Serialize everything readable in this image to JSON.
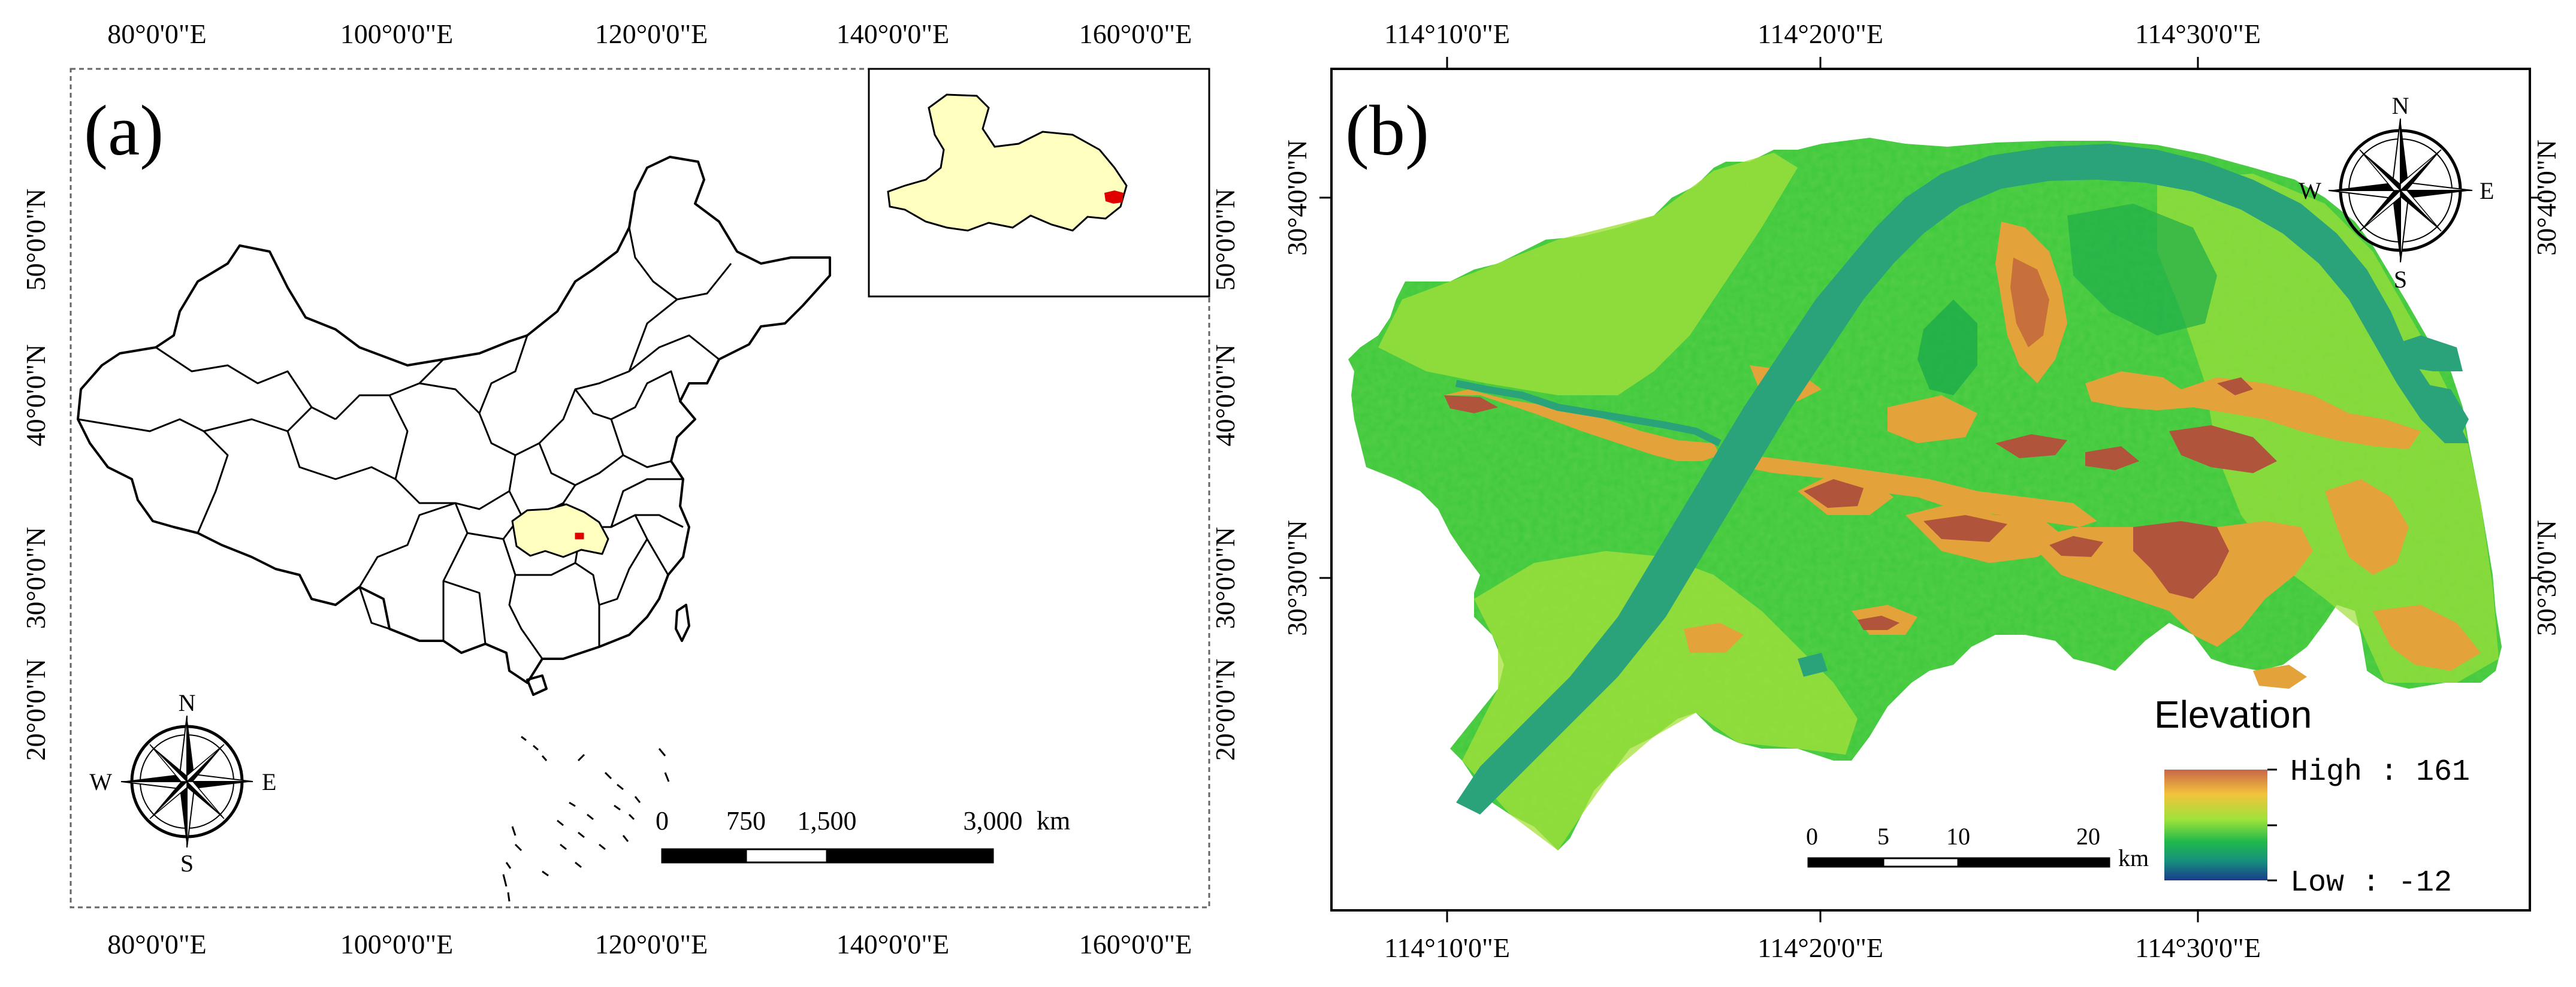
{
  "panel_a": {
    "label": "(a)",
    "top_ticks": [
      "80°0'0\"E",
      "100°0'0\"E",
      "120°0'0\"E",
      "140°0'0\"E",
      "160°0'0\"E"
    ],
    "bottom_ticks": [
      "80°0'0\"E",
      "100°0'0\"E",
      "120°0'0\"E",
      "140°0'0\"E",
      "160°0'0\"E"
    ],
    "left_ticks": [
      "50°0'0\"N",
      "40°0'0\"N",
      "30°0'0\"N",
      "20°0'0\"N"
    ],
    "right_ticks": [
      "50°0'0\"N",
      "40°0'0\"N",
      "30°0'0\"N",
      "20°0'0\"N"
    ],
    "scale_bar": {
      "labels": [
        "0",
        "750",
        "1,500",
        "3,000"
      ],
      "unit": "km"
    },
    "compass": {
      "n": "N",
      "s": "S",
      "e": "E",
      "w": "W"
    },
    "colors": {
      "province": "#ffffc0",
      "study_area": "#e00000",
      "outline": "#000000"
    }
  },
  "panel_b": {
    "label": "(b)",
    "top_ticks": [
      "114°10'0\"E",
      "114°20'0\"E",
      "114°30'0\"E"
    ],
    "bottom_ticks": [
      "114°10'0\"E",
      "114°20'0\"E",
      "114°30'0\"E"
    ],
    "left_ticks": [
      "30°40'0\"N",
      "30°30'0\"N"
    ],
    "right_ticks": [
      "30°40'0\"N",
      "30°30'0\"N"
    ],
    "scale_bar": {
      "labels": [
        "0",
        "5",
        "10",
        "20"
      ],
      "unit": "km"
    },
    "compass": {
      "n": "N",
      "s": "S",
      "e": "E",
      "w": "W"
    },
    "legend": {
      "title": "Elevation",
      "high_label": "High : 161",
      "low_label": "Low : -12",
      "high_value": 161,
      "low_value": -12,
      "colors": [
        "#c8664a",
        "#f3c23a",
        "#9fe33a",
        "#21b94b",
        "#16927c",
        "#183c8c"
      ]
    },
    "colors": {
      "river": "#2aa37a",
      "lowland": "#3cc83c",
      "plain": "#8ee03a",
      "hill": "#e3a23a",
      "peak": "#b0553c"
    }
  }
}
